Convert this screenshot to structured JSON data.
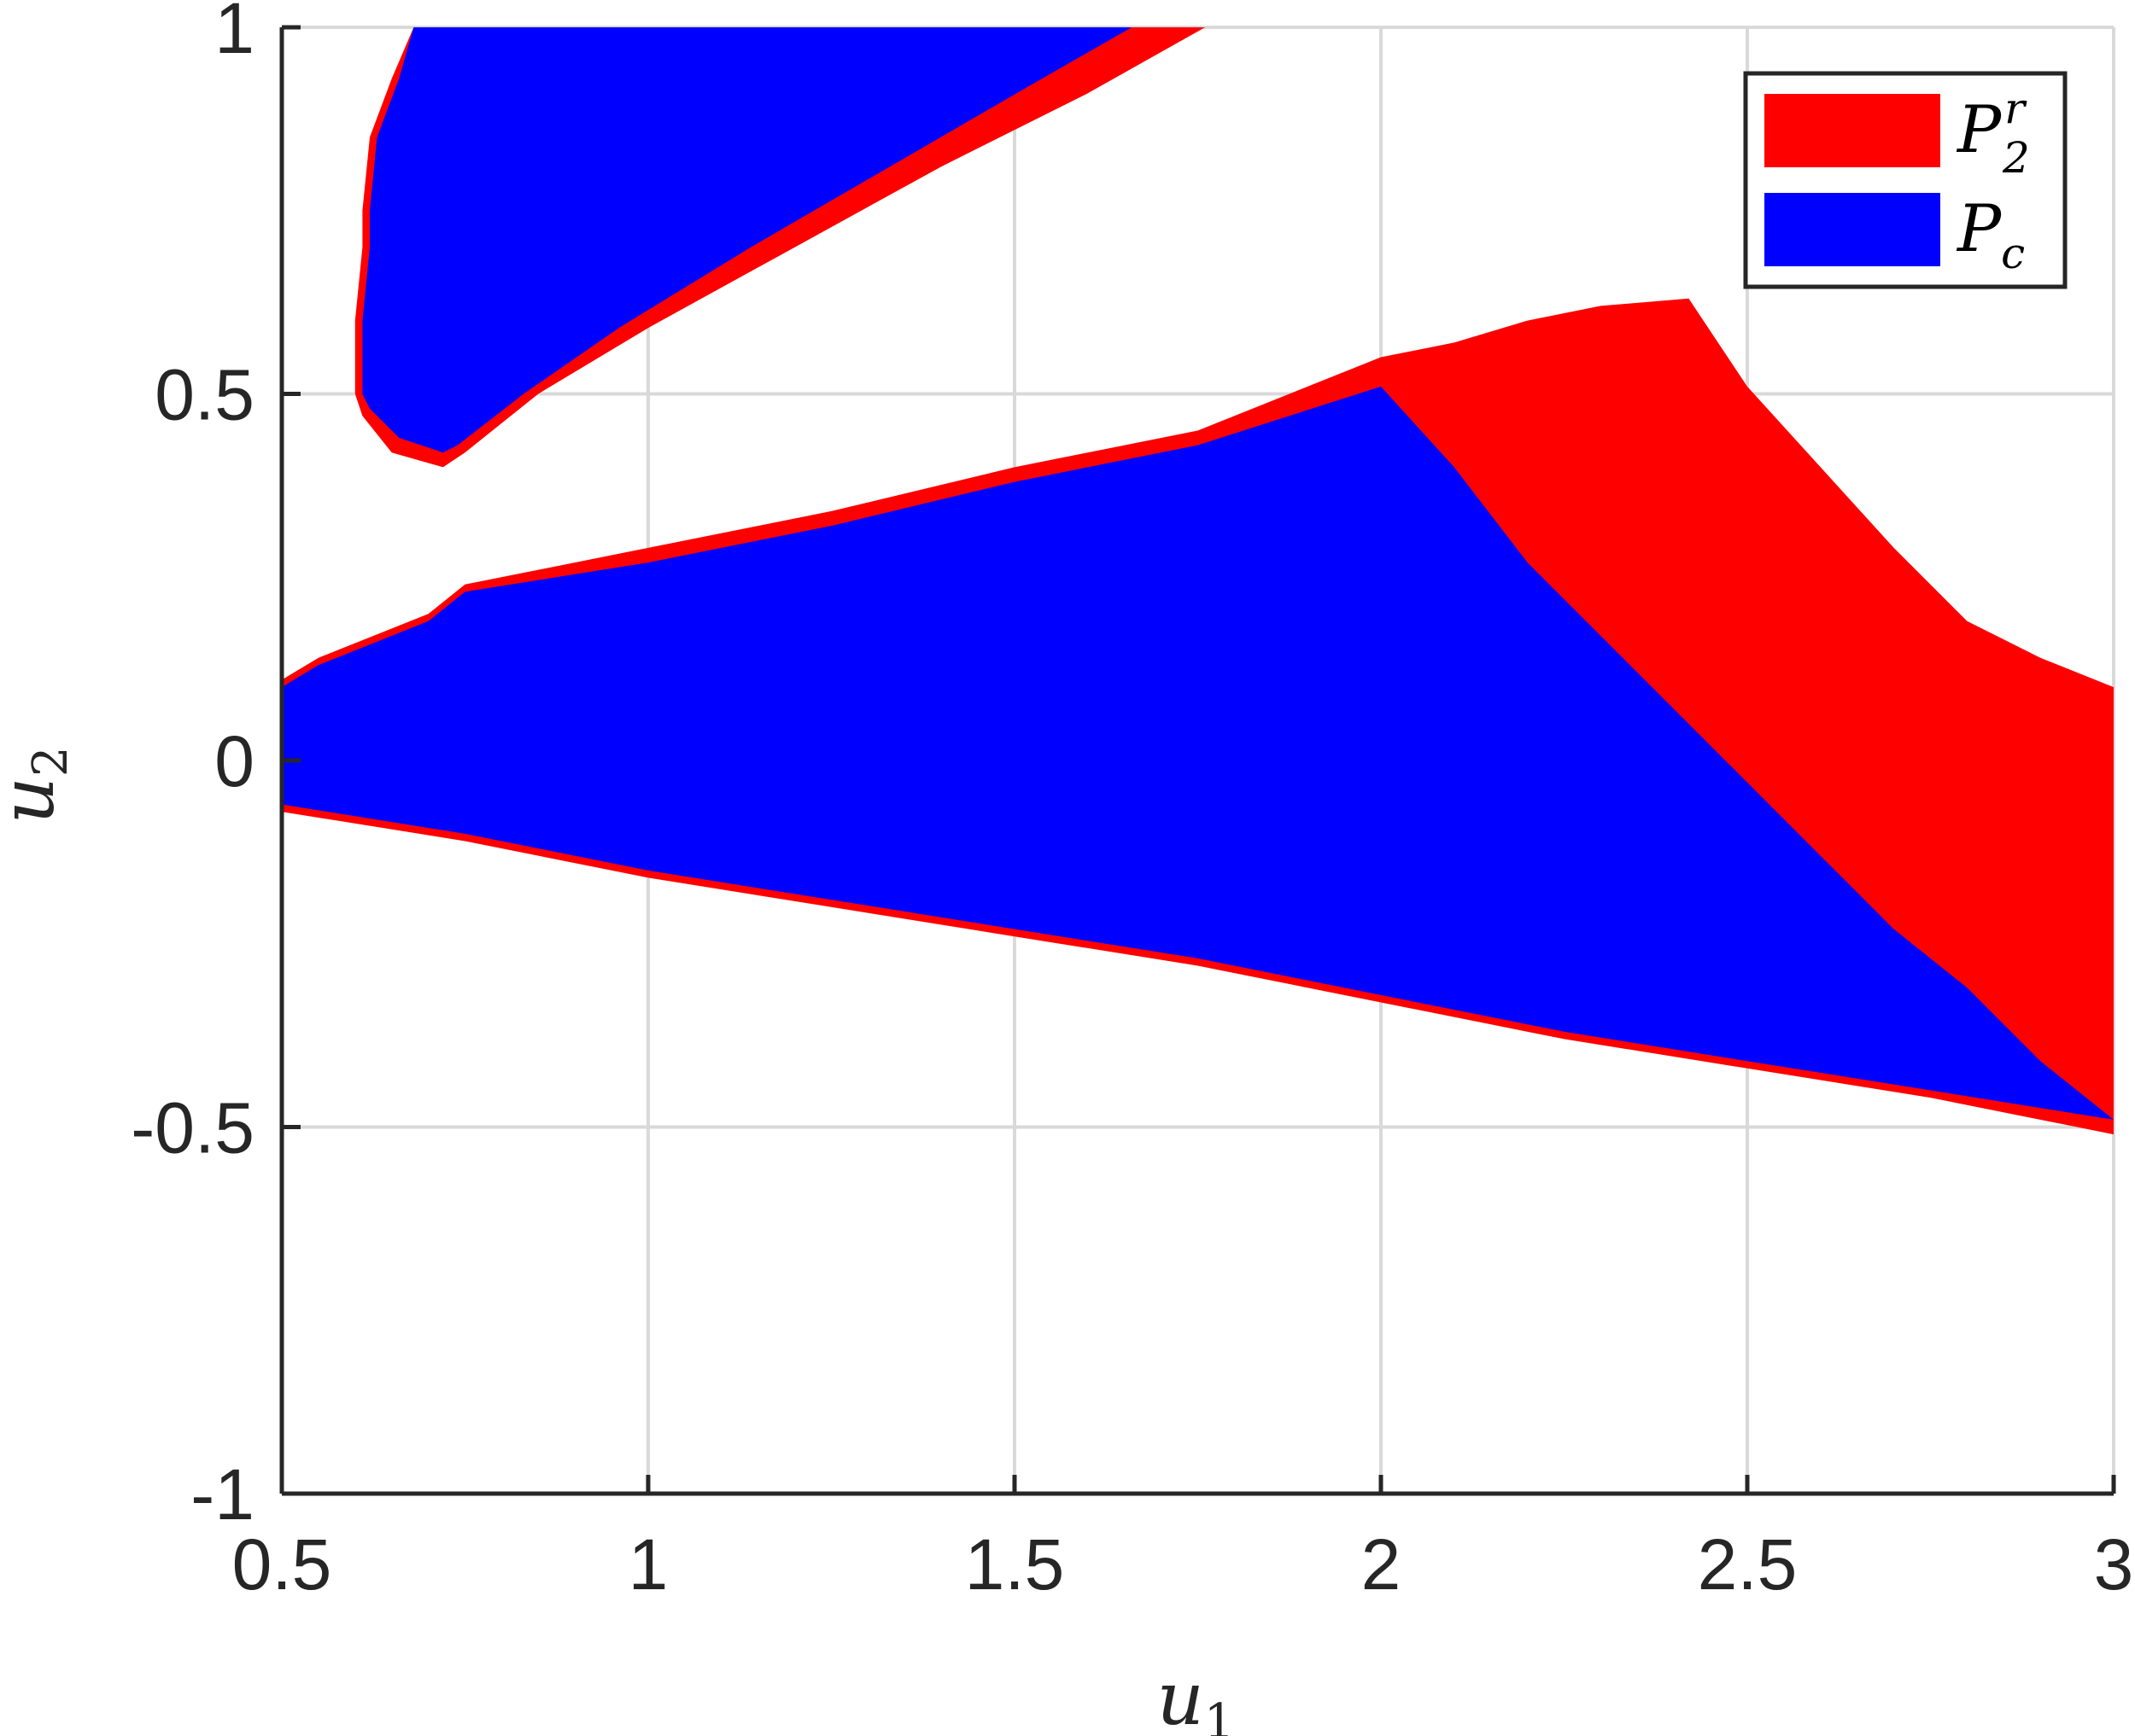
{
  "chart_data": {
    "type": "area",
    "title": "",
    "xlabel": {
      "base": "u",
      "sub": "1"
    },
    "ylabel": {
      "base": "u",
      "sub": "2"
    },
    "xlim": [
      0.5,
      3
    ],
    "ylim": [
      -1,
      1
    ],
    "xticks": [
      0.5,
      1,
      1.5,
      2,
      2.5,
      3
    ],
    "xtick_labels": [
      "0.5",
      "1",
      "1.5",
      "2",
      "2.5",
      "3"
    ],
    "yticks": [
      -1,
      -0.5,
      0,
      0.5,
      1
    ],
    "ytick_labels": [
      "-1",
      "-0.5",
      "0",
      "0.5",
      "1"
    ],
    "grid": true,
    "legend_position": "top-right",
    "colors": {
      "P2r": "#ff0000",
      "Pc": "#0000ff",
      "grid": "#d9d9d9",
      "axis": "#262626"
    },
    "series": [
      {
        "name": "P_2^r",
        "legend": {
          "base": "P",
          "sub": "2",
          "sup": "r"
        },
        "color": "#ff0000",
        "regions": [
          [
            [
              0.6,
              0.5
            ],
            [
              0.6,
              0.6
            ],
            [
              0.61,
              0.7
            ],
            [
              0.61,
              0.75
            ],
            [
              0.62,
              0.85
            ],
            [
              0.65,
              0.93
            ],
            [
              0.68,
              1.0
            ],
            [
              1.76,
              1.0
            ],
            [
              1.6,
              0.91
            ],
            [
              1.4,
              0.81
            ],
            [
              1.2,
              0.7
            ],
            [
              1.0,
              0.59
            ],
            [
              0.85,
              0.5
            ],
            [
              0.75,
              0.42
            ],
            [
              0.72,
              0.4
            ],
            [
              0.65,
              0.42
            ],
            [
              0.61,
              0.47
            ]
          ],
          [
            [
              0.5,
              0.11
            ],
            [
              0.55,
              0.14
            ],
            [
              0.7,
              0.2
            ],
            [
              0.75,
              0.24
            ],
            [
              1.0,
              0.29
            ],
            [
              1.25,
              0.34
            ],
            [
              1.5,
              0.4
            ],
            [
              1.75,
              0.45
            ],
            [
              2.0,
              0.55
            ],
            [
              2.1,
              0.57
            ],
            [
              2.2,
              0.6
            ],
            [
              2.3,
              0.62
            ],
            [
              2.42,
              0.63
            ],
            [
              2.5,
              0.51
            ],
            [
              2.6,
              0.4
            ],
            [
              2.7,
              0.29
            ],
            [
              2.8,
              0.19
            ],
            [
              2.9,
              0.14
            ],
            [
              3.0,
              0.1
            ],
            [
              3.0,
              -0.51
            ],
            [
              2.75,
              -0.46
            ],
            [
              2.5,
              -0.42
            ],
            [
              2.25,
              -0.38
            ],
            [
              2.0,
              -0.33
            ],
            [
              1.75,
              -0.28
            ],
            [
              1.5,
              -0.24
            ],
            [
              1.25,
              -0.2
            ],
            [
              1.0,
              -0.16
            ],
            [
              0.75,
              -0.11
            ],
            [
              0.5,
              -0.07
            ]
          ]
        ]
      },
      {
        "name": "P_c",
        "legend": {
          "base": "P",
          "sub": "c",
          "sup": ""
        },
        "color": "#0000ff",
        "regions": [
          [
            [
              0.61,
              0.5
            ],
            [
              0.61,
              0.6
            ],
            [
              0.62,
              0.7
            ],
            [
              0.62,
              0.75
            ],
            [
              0.63,
              0.85
            ],
            [
              0.66,
              0.93
            ],
            [
              0.68,
              1.0
            ],
            [
              1.66,
              1.0
            ],
            [
              1.52,
              0.92
            ],
            [
              1.33,
              0.81
            ],
            [
              1.14,
              0.7
            ],
            [
              0.96,
              0.59
            ],
            [
              0.83,
              0.5
            ],
            [
              0.74,
              0.43
            ],
            [
              0.72,
              0.42
            ],
            [
              0.66,
              0.44
            ],
            [
              0.62,
              0.48
            ]
          ],
          [
            [
              0.5,
              0.1
            ],
            [
              0.55,
              0.13
            ],
            [
              0.7,
              0.19
            ],
            [
              0.75,
              0.23
            ],
            [
              1.0,
              0.27
            ],
            [
              1.25,
              0.32
            ],
            [
              1.5,
              0.38
            ],
            [
              1.75,
              0.43
            ],
            [
              2.0,
              0.51
            ],
            [
              2.1,
              0.4
            ],
            [
              2.2,
              0.27
            ],
            [
              2.3,
              0.17
            ],
            [
              2.4,
              0.07
            ],
            [
              2.5,
              -0.03
            ],
            [
              2.6,
              -0.13
            ],
            [
              2.7,
              -0.23
            ],
            [
              2.8,
              -0.31
            ],
            [
              2.9,
              -0.41
            ],
            [
              3.0,
              -0.49
            ],
            [
              2.75,
              -0.45
            ],
            [
              2.5,
              -0.41
            ],
            [
              2.25,
              -0.37
            ],
            [
              2.0,
              -0.32
            ],
            [
              1.75,
              -0.27
            ],
            [
              1.5,
              -0.23
            ],
            [
              1.25,
              -0.19
            ],
            [
              1.0,
              -0.15
            ],
            [
              0.75,
              -0.1
            ],
            [
              0.5,
              -0.06
            ]
          ]
        ]
      }
    ]
  }
}
